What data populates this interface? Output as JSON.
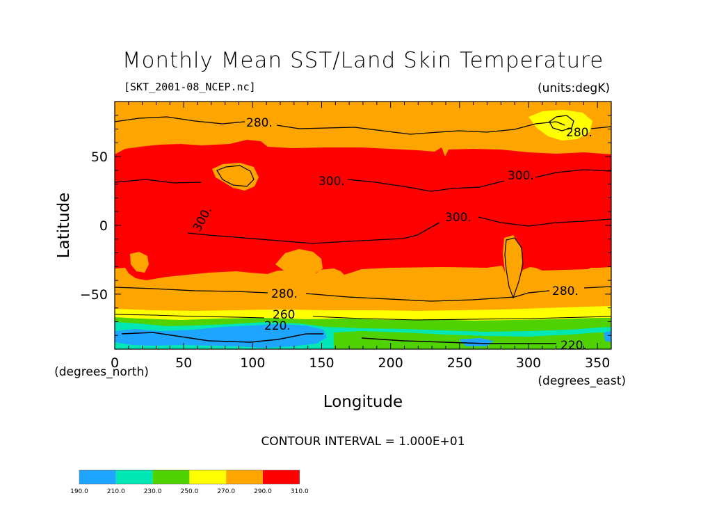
{
  "title": "Monthly Mean SST/Land Skin Temperature",
  "source_file": "[SKT_2001-08_NCEP.nc]",
  "units": "(units:degK)",
  "axes": {
    "x": {
      "label": "Longitude",
      "units": "(degrees_east)",
      "ticks": [
        0,
        50,
        100,
        150,
        200,
        250,
        300,
        350
      ],
      "range": [
        0,
        360
      ]
    },
    "y": {
      "label": "Latitude",
      "units": "(degrees_north)",
      "ticks": [
        -50,
        0,
        50
      ],
      "range": [
        -90,
        90
      ]
    }
  },
  "contour_interval": "CONTOUR INTERVAL = 1.000E+01",
  "contour_labels": [
    "280.",
    "280.",
    "300.",
    "300.",
    "300.",
    "300.",
    "280.",
    "280.",
    "260",
    "220.",
    "220."
  ],
  "colorbar": {
    "levels": [
      "190.0",
      "210.0",
      "230.0",
      "250.0",
      "270.0",
      "290.0",
      "310.0"
    ],
    "colors": [
      "#1ea5ff",
      "#00e6b4",
      "#50d200",
      "#ffff00",
      "#ffa500",
      "#ff0000"
    ]
  },
  "colors": {
    "band_190_210": "#1ea5ff",
    "band_210_230": "#00e6b4",
    "band_230_250": "#50d200",
    "band_250_270": "#ffff00",
    "band_270_290": "#ffa500",
    "band_290_310": "#ff0000"
  }
}
